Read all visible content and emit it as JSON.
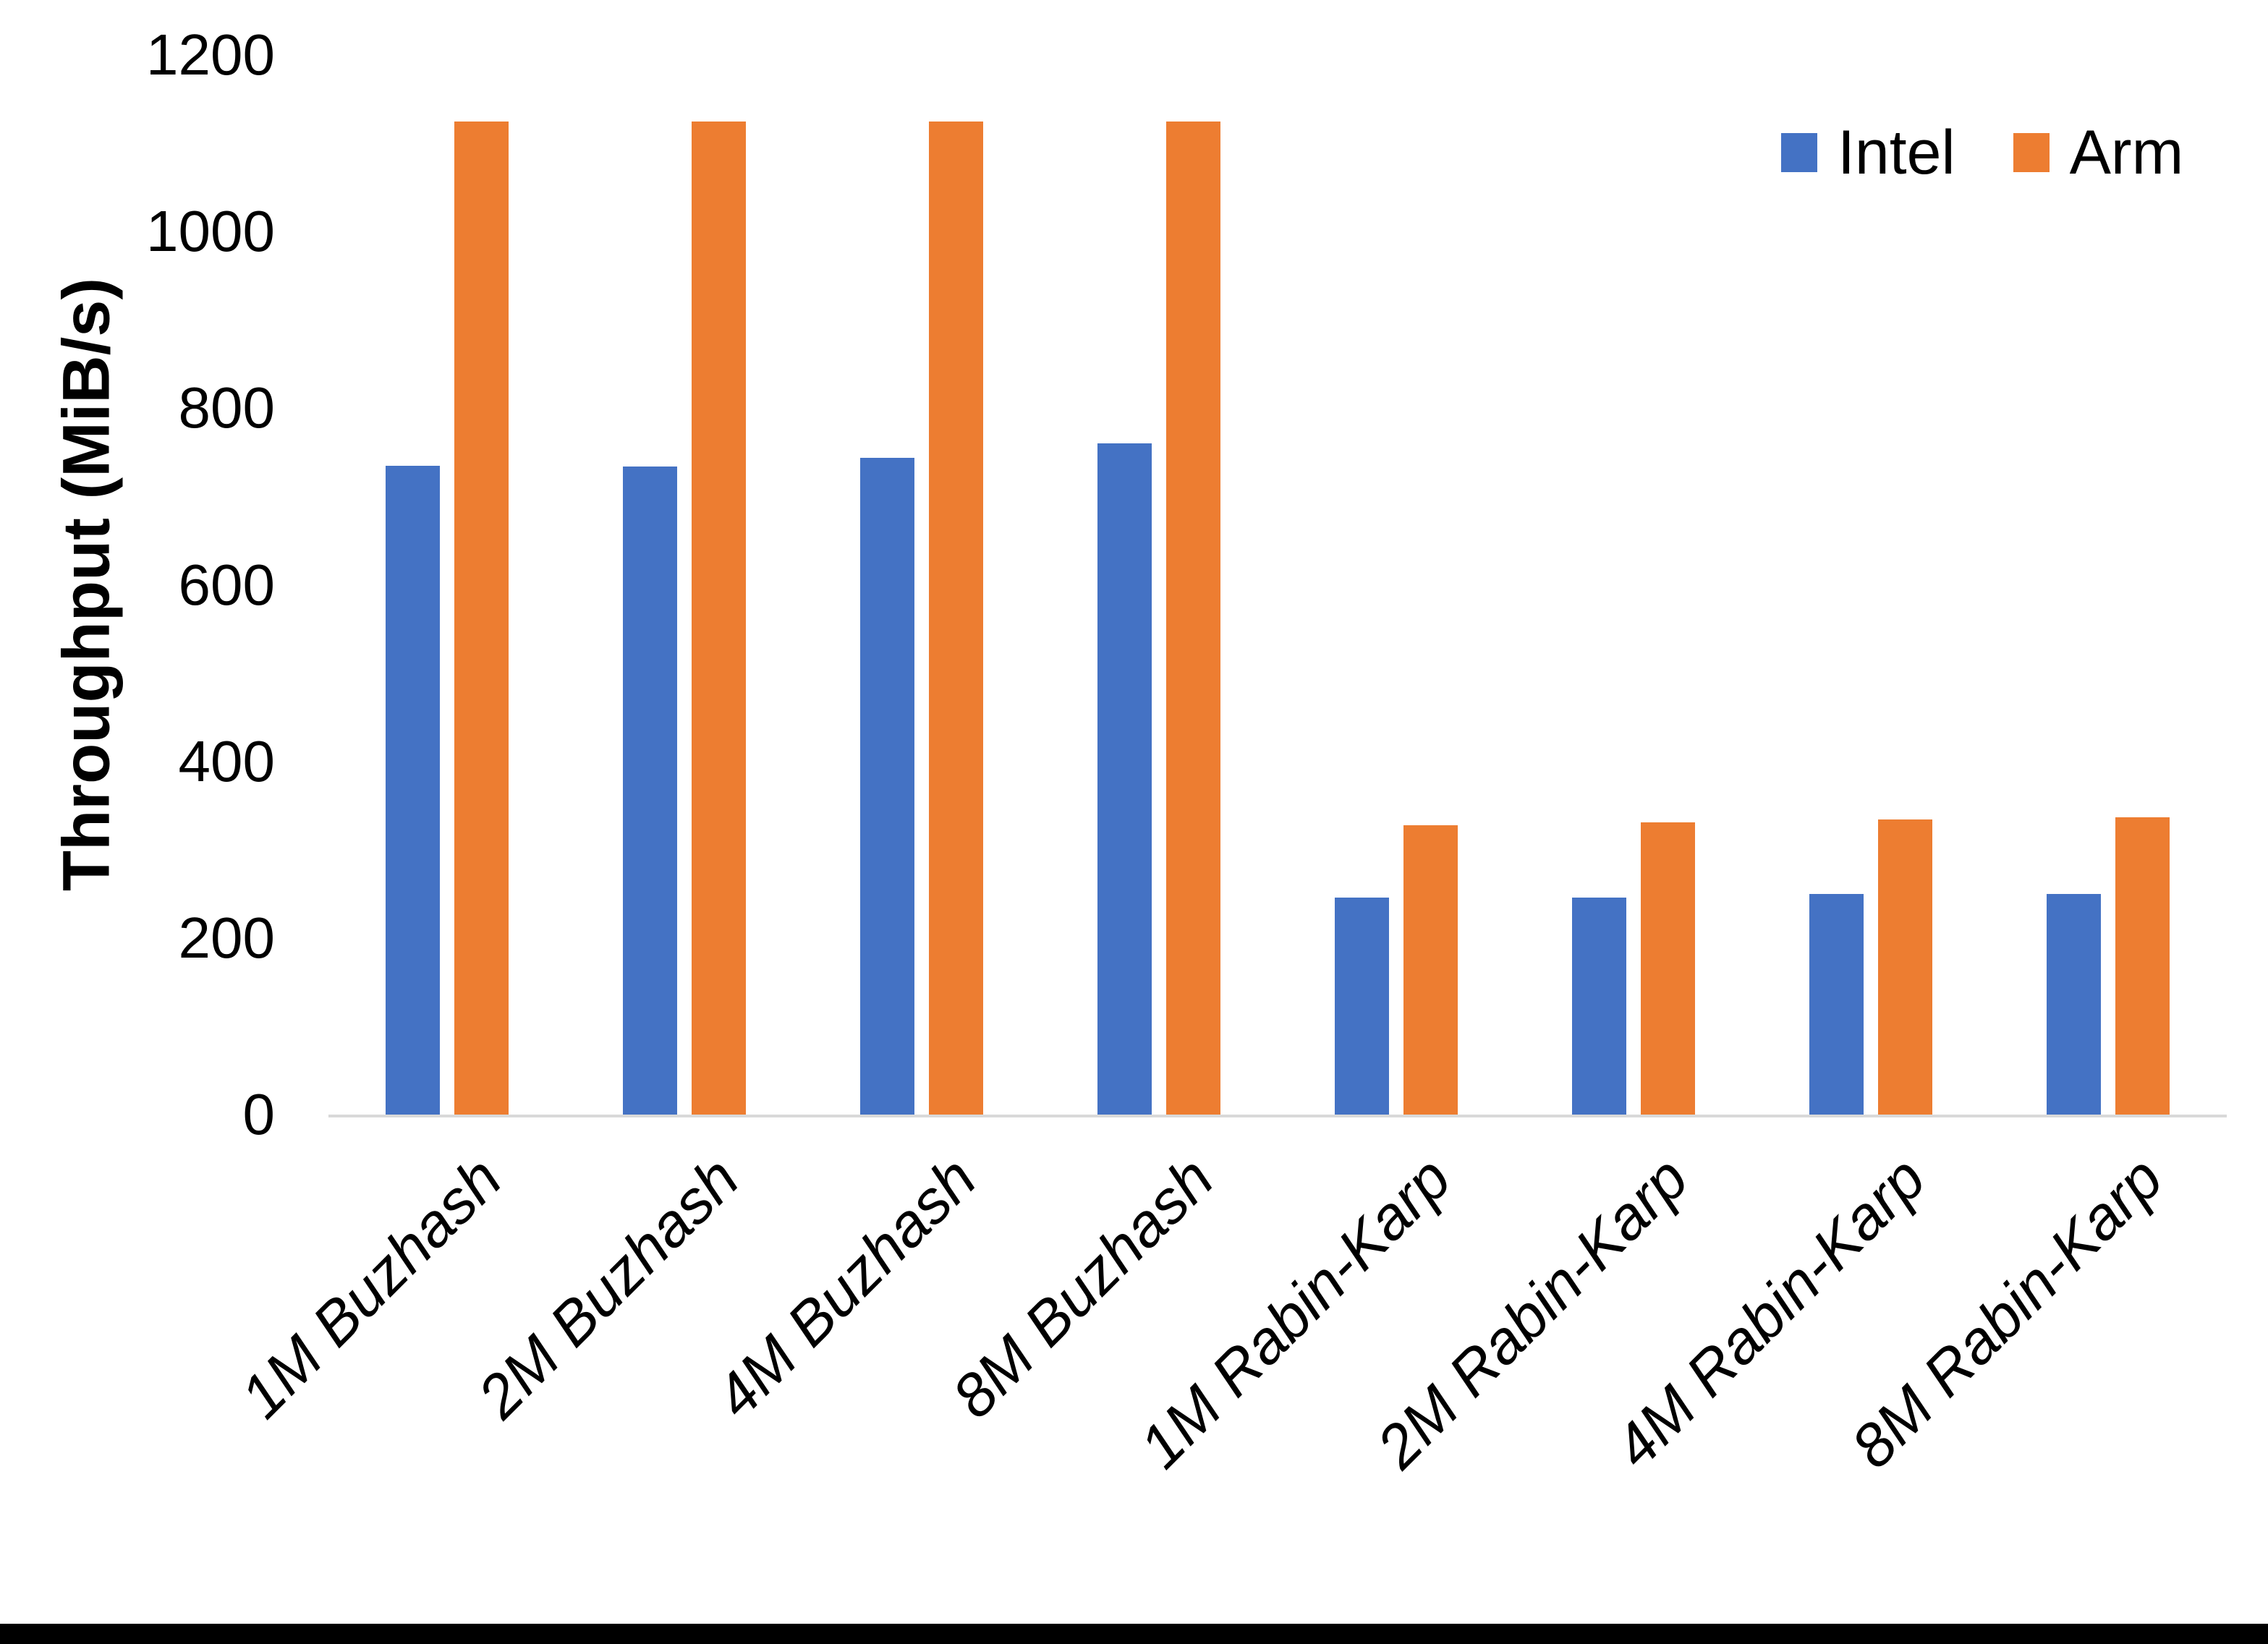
{
  "chart_data": {
    "type": "bar",
    "title": "",
    "categories": [
      "1M Buzhash",
      "2M Buzhash",
      "4M Buzhash",
      "8M Buzhash",
      "1M Rabin-Karp",
      "2M Rabin-Karp",
      "4M Rabin-Karp",
      "8M Rabin-Karp"
    ],
    "series": [
      {
        "name": "Intel",
        "color": "#4472C4",
        "values": [
          735,
          734,
          744,
          760,
          246,
          246,
          250,
          250
        ]
      },
      {
        "name": "Arm",
        "color": "#ED7D31",
        "values": [
          1125,
          1125,
          1125,
          1125,
          328,
          331,
          334,
          337
        ]
      }
    ],
    "xlabel": "",
    "ylabel": "Throughput (MiB/s)",
    "ylim": [
      0,
      1200
    ],
    "yticks": [
      0,
      200,
      400,
      600,
      800,
      1000,
      1200
    ],
    "grid": false,
    "legend_position": "top-right"
  },
  "colors": {
    "background": "#FFFFFF",
    "axis_line": "#D9D9D9",
    "text": "#000000",
    "bottom_edge_bar": "#000000"
  }
}
